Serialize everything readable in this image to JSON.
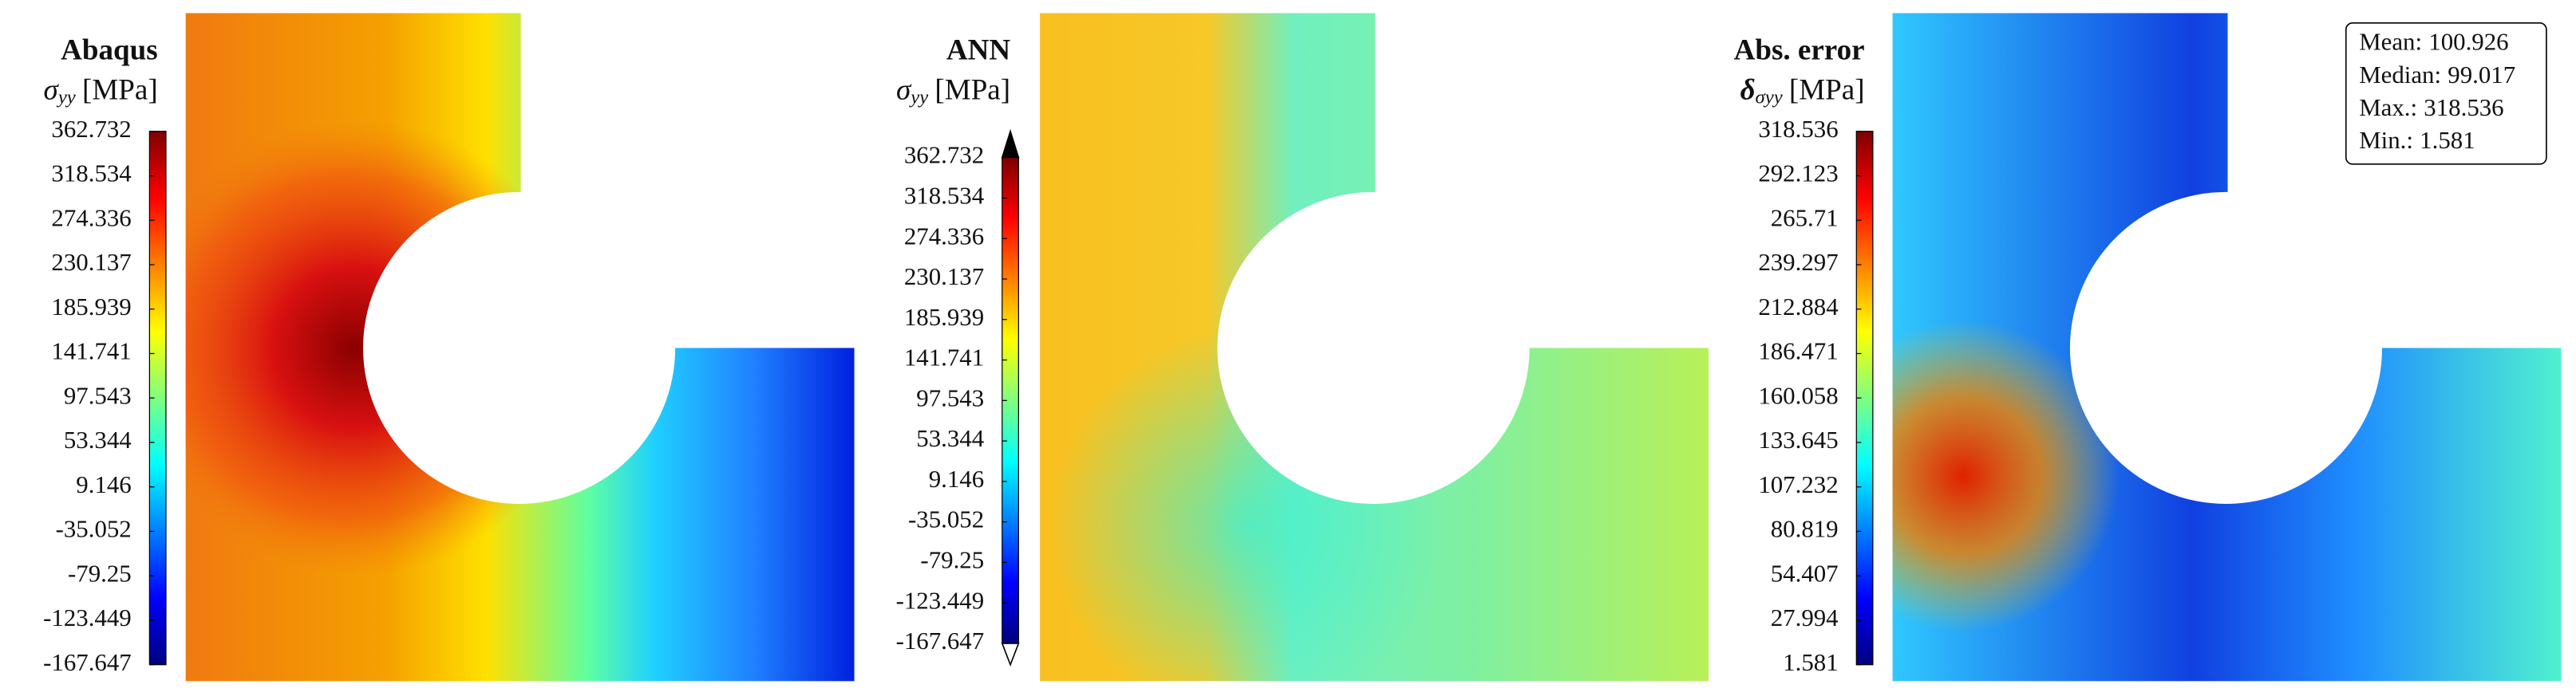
{
  "chart_data": [
    {
      "type": "contour",
      "title": "Abaqus",
      "label": {
        "symbol": "σ",
        "subscript": "yy",
        "unit": "[MPa]"
      },
      "colormap": "jet",
      "clim": [
        -167.647,
        362.732
      ],
      "cticks": [
        362.732,
        318.534,
        274.336,
        230.137,
        185.939,
        141.741,
        97.543,
        53.344,
        9.146,
        -35.052,
        -79.25,
        -123.449,
        -167.647
      ]
    },
    {
      "type": "contour",
      "title": "ANN",
      "label": {
        "symbol": "σ",
        "subscript": "yy",
        "unit": "[MPa]"
      },
      "colormap": "jet",
      "extend": "both",
      "clim": [
        -167.647,
        362.732
      ],
      "cticks": [
        362.732,
        318.534,
        274.336,
        230.137,
        185.939,
        141.741,
        97.543,
        53.344,
        9.146,
        -35.052,
        -79.25,
        -123.449,
        -167.647
      ]
    },
    {
      "type": "contour",
      "title": "Abs. error",
      "label": {
        "symbol": "δ",
        "subscript": "σyy",
        "unit": "[MPa]"
      },
      "colormap": "jet",
      "clim": [
        1.581,
        318.536
      ],
      "cticks": [
        318.536,
        292.123,
        265.71,
        239.297,
        212.884,
        186.471,
        160.058,
        133.645,
        107.232,
        80.819,
        54.407,
        27.994,
        1.581
      ],
      "stats": [
        {
          "label": "Mean:",
          "value": 100.926
        },
        {
          "label": "Median:",
          "value": 99.017
        },
        {
          "label": "Max.:",
          "value": 318.536
        },
        {
          "label": "Min.:",
          "value": 1.581
        }
      ]
    }
  ]
}
